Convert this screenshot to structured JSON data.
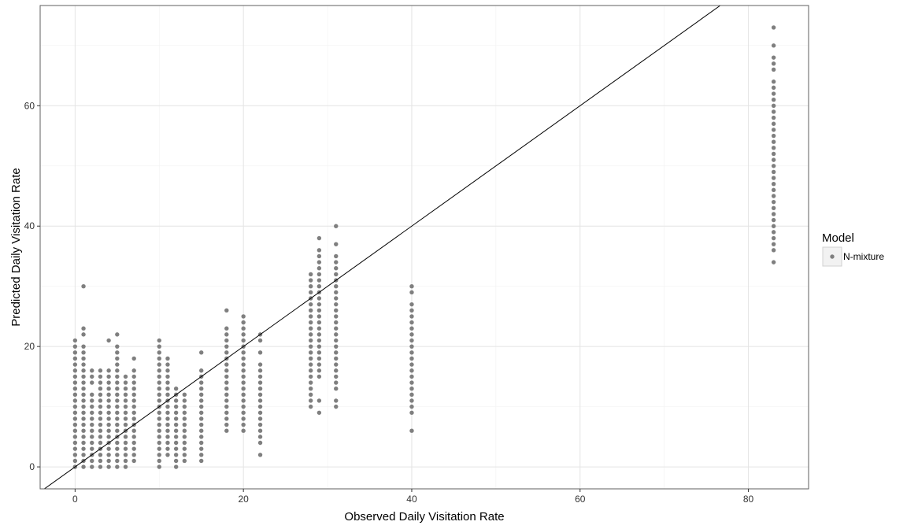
{
  "chart_data": {
    "type": "scatter",
    "title": "",
    "xlabel": "Observed Daily Visitation Rate",
    "ylabel": "Predicted Daily Visitation Rate",
    "xlim": [
      -4.15,
      87.15
    ],
    "ylim": [
      -3.65,
      76.65
    ],
    "x_ticks": [
      0,
      20,
      40,
      60,
      80
    ],
    "y_ticks": [
      0,
      20,
      40,
      60
    ],
    "x_tick_labels": [
      "0",
      "20",
      "40",
      "60",
      "80"
    ],
    "y_tick_labels": [
      "0",
      "20",
      "40",
      "60"
    ],
    "grid": true,
    "legend_position": "right",
    "legend_title": "Model",
    "reference_line": {
      "slope": 1,
      "intercept": 0
    },
    "colors": {
      "point": "#7f7f7f",
      "line": "#000000",
      "grid_major": "#e4e4e4",
      "grid_minor": "#f2f2f2",
      "panel_border": "#5f5f5f"
    },
    "series": [
      {
        "name": "N-mixture",
        "columns": [
          {
            "x": 0,
            "y": [
              0,
              1,
              2,
              3,
              4,
              5,
              6,
              7,
              8,
              9,
              10,
              11,
              12,
              13,
              14,
              15,
              16,
              17,
              18,
              19,
              20,
              21
            ]
          },
          {
            "x": 1,
            "y": [
              0,
              1,
              2,
              3,
              4,
              5,
              6,
              7,
              8,
              9,
              10,
              11,
              12,
              13,
              14,
              15,
              16,
              17,
              18,
              19,
              20,
              22,
              23,
              30
            ]
          },
          {
            "x": 2,
            "y": [
              0,
              1,
              2,
              3,
              4,
              5,
              6,
              7,
              8,
              9,
              10,
              11,
              12,
              14,
              15,
              16
            ]
          },
          {
            "x": 3,
            "y": [
              0,
              1,
              2,
              3,
              4,
              5,
              6,
              7,
              8,
              9,
              10,
              11,
              12,
              13,
              14,
              15,
              16
            ]
          },
          {
            "x": 4,
            "y": [
              0,
              1,
              2,
              3,
              4,
              5,
              6,
              7,
              8,
              9,
              10,
              11,
              12,
              13,
              14,
              15,
              16,
              21
            ]
          },
          {
            "x": 5,
            "y": [
              0,
              1,
              2,
              3,
              4,
              5,
              6,
              7,
              8,
              9,
              10,
              11,
              12,
              13,
              14,
              15,
              16,
              17,
              18,
              19,
              20,
              22
            ]
          },
          {
            "x": 6,
            "y": [
              0,
              1,
              2,
              3,
              4,
              5,
              6,
              7,
              8,
              9,
              10,
              11,
              12,
              13,
              14,
              15
            ]
          },
          {
            "x": 7,
            "y": [
              1,
              2,
              3,
              4,
              5,
              6,
              7,
              8,
              9,
              10,
              11,
              12,
              13,
              14,
              15,
              16,
              18
            ]
          },
          {
            "x": 10,
            "y": [
              0,
              1,
              2,
              3,
              4,
              5,
              6,
              7,
              8,
              9,
              10,
              11,
              12,
              13,
              14,
              15,
              16,
              17,
              18,
              19,
              20,
              21
            ]
          },
          {
            "x": 11,
            "y": [
              2,
              3,
              4,
              5,
              6,
              7,
              8,
              9,
              10,
              11,
              12,
              13,
              14,
              15,
              16,
              17,
              18
            ]
          },
          {
            "x": 12,
            "y": [
              0,
              1,
              2,
              3,
              4,
              5,
              6,
              7,
              8,
              9,
              10,
              11,
              12,
              13
            ]
          },
          {
            "x": 13,
            "y": [
              1,
              2,
              3,
              4,
              5,
              6,
              7,
              8,
              9,
              10,
              11,
              12
            ]
          },
          {
            "x": 15,
            "y": [
              1,
              2,
              3,
              4,
              5,
              6,
              7,
              8,
              9,
              10,
              11,
              12,
              13,
              14,
              15,
              16,
              19
            ]
          },
          {
            "x": 18,
            "y": [
              6,
              7,
              8,
              9,
              10,
              11,
              12,
              13,
              14,
              15,
              16,
              17,
              18,
              19,
              20,
              21,
              22,
              23,
              26
            ]
          },
          {
            "x": 20,
            "y": [
              6,
              7,
              8,
              9,
              10,
              11,
              12,
              13,
              14,
              15,
              16,
              17,
              18,
              19,
              20,
              21,
              22,
              23,
              24,
              25
            ]
          },
          {
            "x": 22,
            "y": [
              2,
              4,
              5,
              6,
              7,
              8,
              9,
              10,
              11,
              12,
              13,
              14,
              15,
              16,
              17,
              19,
              21,
              22
            ]
          },
          {
            "x": 28,
            "y": [
              10,
              11,
              12,
              13,
              14,
              15,
              16,
              17,
              18,
              19,
              20,
              21,
              22,
              23,
              24,
              25,
              26,
              27,
              28,
              29,
              30,
              31,
              32
            ]
          },
          {
            "x": 29,
            "y": [
              9,
              11,
              15,
              16,
              17,
              18,
              19,
              20,
              21,
              22,
              23,
              24,
              25,
              26,
              27,
              28,
              29,
              30,
              31,
              32,
              33,
              34,
              35,
              36,
              38
            ]
          },
          {
            "x": 31,
            "y": [
              10,
              11,
              13,
              14,
              15,
              16,
              17,
              18,
              19,
              20,
              21,
              22,
              23,
              24,
              25,
              26,
              27,
              28,
              29,
              30,
              31,
              32,
              33,
              34,
              35,
              37,
              40
            ]
          },
          {
            "x": 40,
            "y": [
              6,
              9,
              10,
              11,
              12,
              13,
              14,
              15,
              16,
              17,
              18,
              19,
              20,
              21,
              22,
              23,
              24,
              25,
              26,
              27,
              29,
              30
            ]
          },
          {
            "x": 83,
            "y": [
              34,
              36,
              37,
              38,
              39,
              40,
              41,
              42,
              43,
              44,
              45,
              46,
              47,
              48,
              49,
              50,
              51,
              52,
              53,
              54,
              55,
              56,
              57,
              58,
              59,
              60,
              61,
              62,
              63,
              64,
              66,
              67,
              68,
              70,
              73
            ]
          }
        ]
      }
    ]
  }
}
